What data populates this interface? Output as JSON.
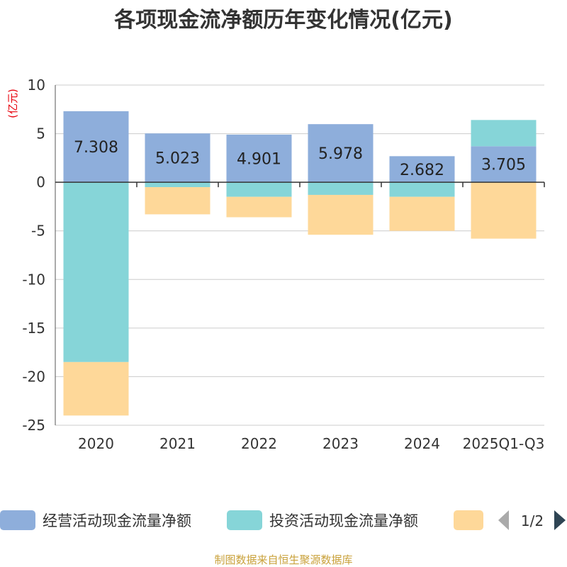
{
  "chart_data": {
    "type": "bar",
    "stacked": true,
    "title": "各项现金流净额历年变化情况(亿元)",
    "ylabel": "(亿元)",
    "xlabel": "",
    "categories": [
      "2020",
      "2021",
      "2022",
      "2023",
      "2024",
      "2025Q1-Q3"
    ],
    "ylim": [
      -25,
      10
    ],
    "yticks": [
      10,
      5,
      0,
      -5,
      -10,
      -15,
      -20,
      -25
    ],
    "grid": true,
    "series": [
      {
        "name": "经营活动现金流量净额",
        "color": "#8eaedb",
        "values": [
          7.308,
          5.023,
          4.901,
          5.978,
          2.682,
          3.705
        ],
        "labels": [
          "7.308",
          "5.023",
          "4.901",
          "5.978",
          "2.682",
          "3.705"
        ]
      },
      {
        "name": "投资活动现金流量净额",
        "color": "#86d5d8",
        "values": [
          -18.5,
          -0.5,
          -1.5,
          -1.3,
          -1.5,
          2.7
        ]
      },
      {
        "name": "",
        "color": "#fed899",
        "values": [
          -5.5,
          -2.8,
          -2.1,
          -4.1,
          -3.5,
          -5.8
        ]
      }
    ],
    "legend": {
      "position": "bottom",
      "items": [
        "经营活动现金流量净额",
        "投资活动现金流量净额"
      ],
      "page": "1/2"
    },
    "source": "制图数据来自恒生聚源数据库"
  }
}
